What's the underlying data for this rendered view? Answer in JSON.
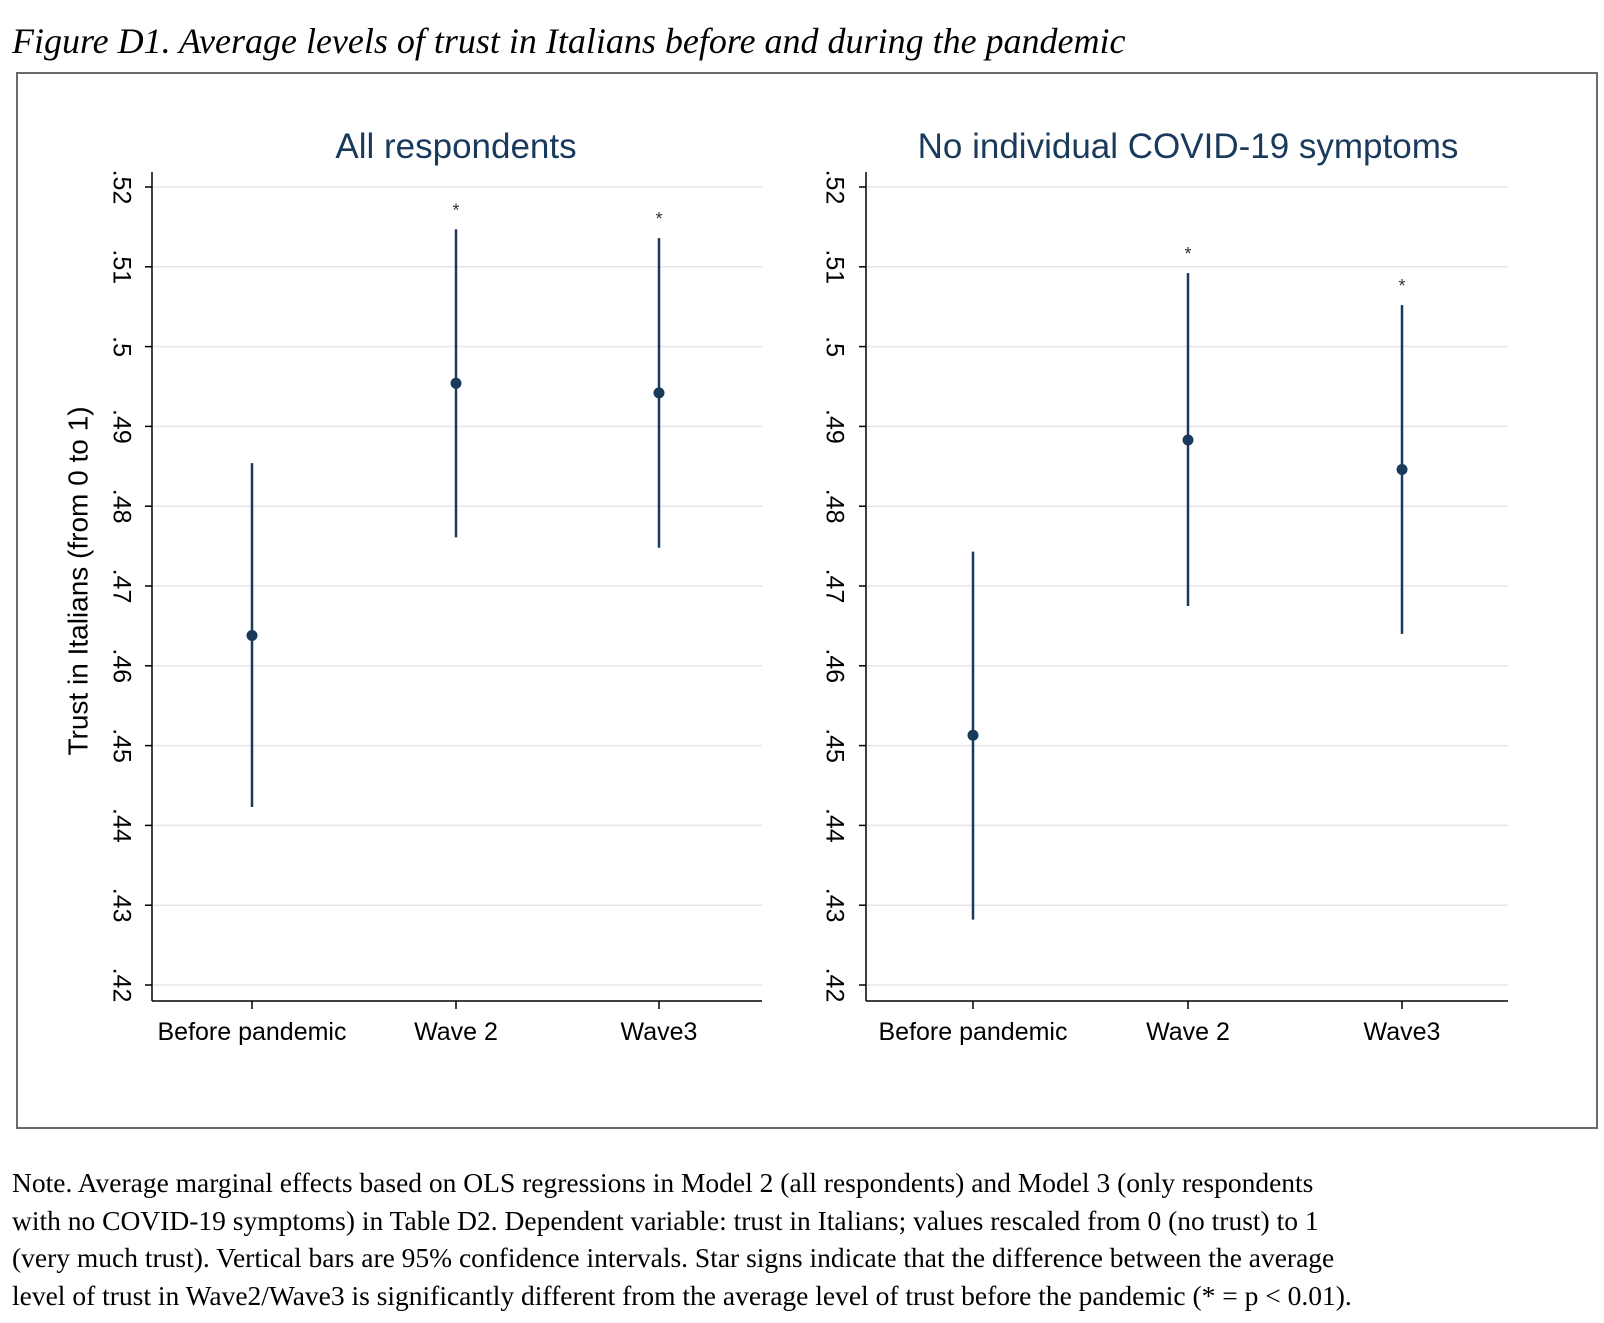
{
  "figure_title": "Figure D1. Average levels of trust in Italians before and during the pandemic",
  "note_lines": [
    "Note. Average marginal effects based on OLS regressions in Model 2 (all respondents) and Model 3 (only respondents",
    "with no COVID-19 symptoms) in Table D2. Dependent variable: trust in Italians; values rescaled from 0 (no trust) to 1",
    "(very much trust). Vertical bars are 95% confidence intervals. Star signs indicate that the difference between the average",
    "level of trust in Wave2/Wave3 is significantly different from the average level of trust before the pandemic (* = p < 0.01)."
  ],
  "colors": {
    "marker": "#1a3a5c",
    "axis": "#000000",
    "grid": "#e6e6e6",
    "frame": "#6b6b6b"
  },
  "chart_data": [
    {
      "type": "scatter",
      "title": "All respondents",
      "ylabel": "Trust in Italians (from 0 to 1)",
      "xlabel": "",
      "categories": [
        "Before pandemic",
        "Wave 2",
        "Wave3"
      ],
      "values": [
        0.4638,
        0.4954,
        0.4942
      ],
      "ci_low": [
        0.4423,
        0.4761,
        0.4748
      ],
      "ci_high": [
        0.4854,
        0.5147,
        0.5136
      ],
      "significance": [
        "",
        "*",
        "*"
      ],
      "ylim": [
        0.42,
        0.52
      ],
      "yticks": [
        ".42",
        ".43",
        ".44",
        ".45",
        ".46",
        ".47",
        ".48",
        ".49",
        ".5",
        ".51",
        ".52"
      ],
      "grid": true
    },
    {
      "type": "scatter",
      "title": "No individual COVID-19 symptoms",
      "ylabel": "",
      "xlabel": "",
      "categories": [
        "Before pandemic",
        "Wave 2",
        "Wave3"
      ],
      "values": [
        0.4513,
        0.4883,
        0.4846
      ],
      "ci_low": [
        0.4282,
        0.4675,
        0.464
      ],
      "ci_high": [
        0.4743,
        0.5092,
        0.5052
      ],
      "significance": [
        "",
        "*",
        "*"
      ],
      "ylim": [
        0.42,
        0.52
      ],
      "yticks": [
        ".42",
        ".43",
        ".44",
        ".45",
        ".46",
        ".47",
        ".48",
        ".49",
        ".5",
        ".51",
        ".52"
      ],
      "grid": true
    }
  ]
}
